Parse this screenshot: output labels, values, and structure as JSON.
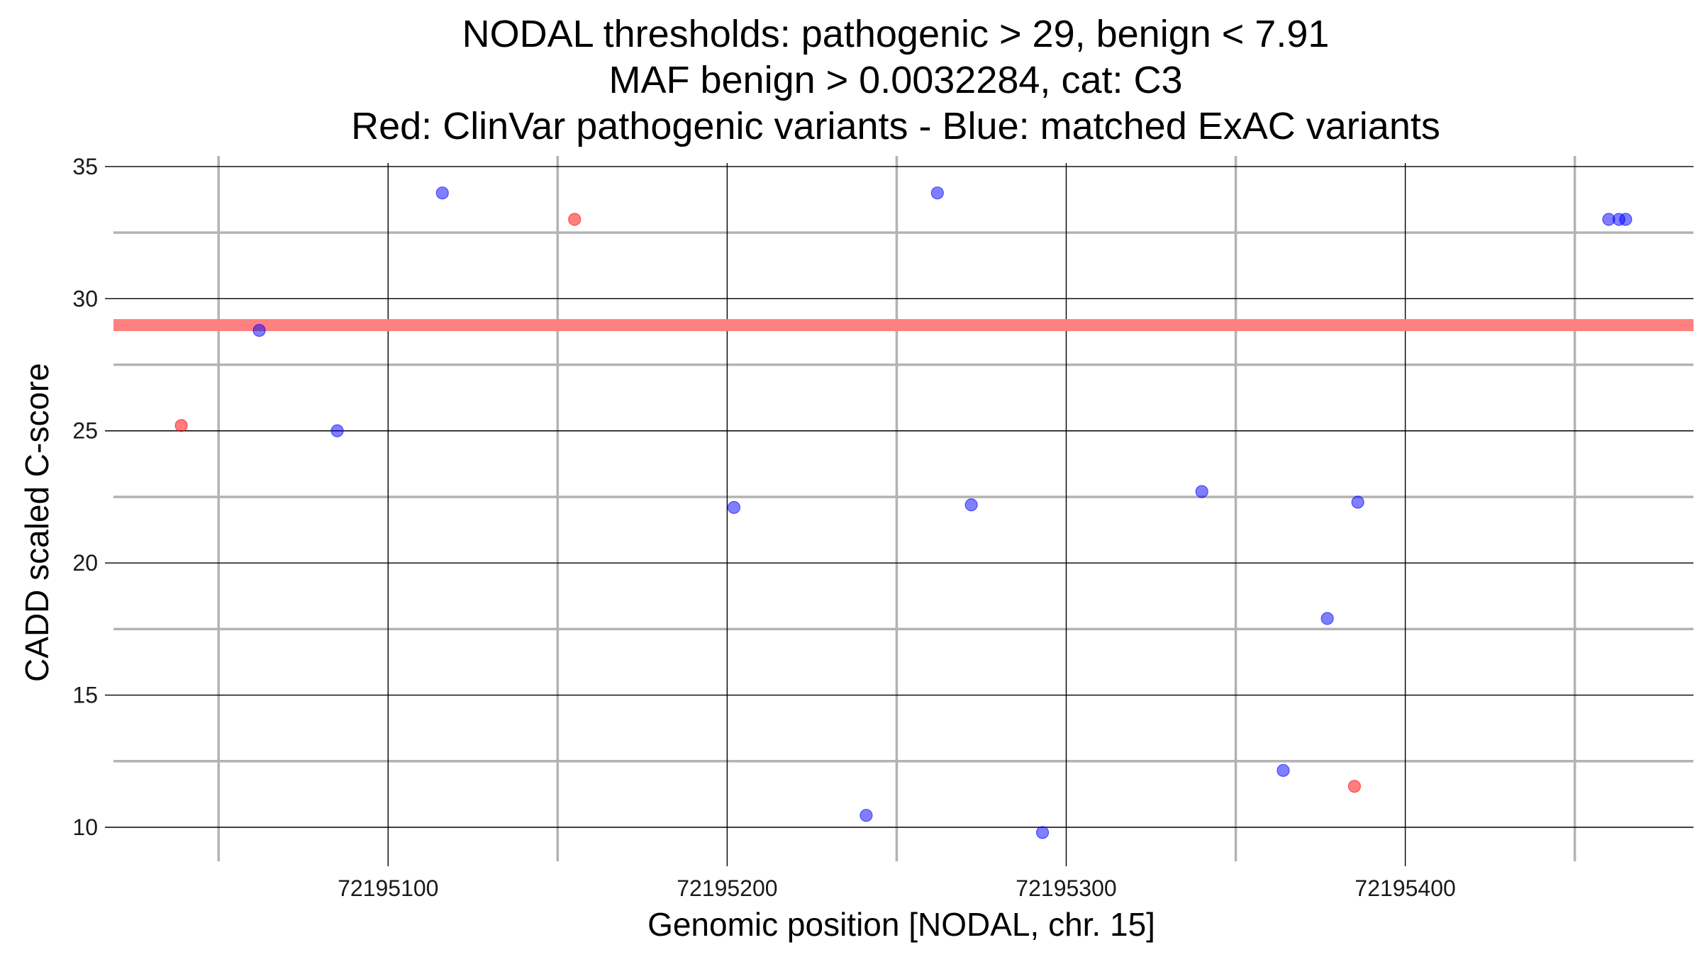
{
  "chart_data": {
    "type": "scatter",
    "title_lines": [
      "NODAL thresholds: pathogenic > 29, benign < 7.91",
      "MAF benign > 0.0032284, cat: C3",
      "Red: ClinVar pathogenic variants - Blue: matched ExAC variants"
    ],
    "xlabel": "Genomic position [NODAL, chr. 15]",
    "ylabel": "CADD scaled C-score",
    "xlim": [
      72195019,
      72195485
    ],
    "ylim": [
      8.9,
      35.4
    ],
    "x_major_ticks": [
      72195100,
      72195200,
      72195300,
      72195400
    ],
    "x_tick_labels": [
      "72195100",
      "72195200",
      "72195300",
      "72195400"
    ],
    "x_minor_ticks": [
      72195050,
      72195150,
      72195250,
      72195350,
      72195450
    ],
    "y_major_ticks": [
      10,
      15,
      20,
      25,
      30,
      35
    ],
    "y_tick_labels": [
      "10",
      "15",
      "20",
      "25",
      "30",
      "35"
    ],
    "y_minor_ticks": [
      12.5,
      17.5,
      22.5,
      27.5,
      32.5
    ],
    "threshold": {
      "label": "pathogenic threshold",
      "value": 29,
      "color": "#ff8080"
    },
    "series": [
      {
        "name": "ClinVar pathogenic variants",
        "color": "#ff0000",
        "points": [
          {
            "x": 72195039,
            "y": 25.2
          },
          {
            "x": 72195155,
            "y": 33.0
          },
          {
            "x": 72195385,
            "y": 11.55
          }
        ]
      },
      {
        "name": "matched ExAC variants",
        "color": "#0000ff",
        "points": [
          {
            "x": 72195062,
            "y": 28.8
          },
          {
            "x": 72195085,
            "y": 25.0
          },
          {
            "x": 72195116,
            "y": 34.0
          },
          {
            "x": 72195202,
            "y": 22.1
          },
          {
            "x": 72195241,
            "y": 10.45
          },
          {
            "x": 72195262,
            "y": 34.0
          },
          {
            "x": 72195272,
            "y": 22.2
          },
          {
            "x": 72195293,
            "y": 9.8
          },
          {
            "x": 72195340,
            "y": 22.7
          },
          {
            "x": 72195364,
            "y": 12.15
          },
          {
            "x": 72195377,
            "y": 17.9
          },
          {
            "x": 72195386,
            "y": 22.3
          },
          {
            "x": 72195460,
            "y": 33.0
          },
          {
            "x": 72195463,
            "y": 33.0
          },
          {
            "x": 72195465,
            "y": 33.0
          }
        ]
      }
    ]
  }
}
